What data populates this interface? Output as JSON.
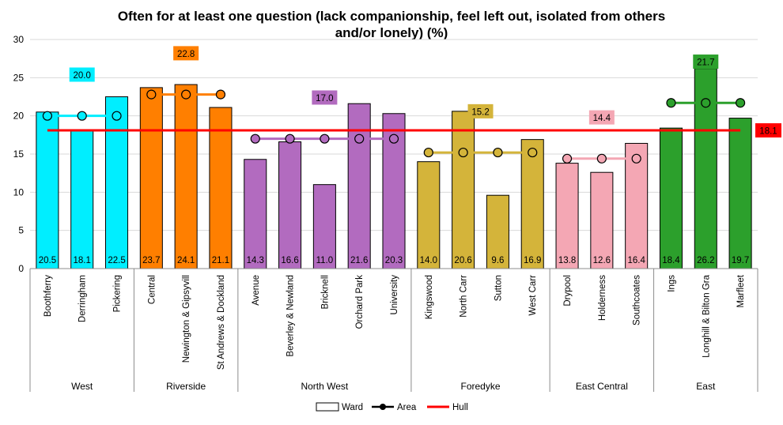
{
  "chart_data": {
    "type": "bar",
    "title_lines": [
      "Often for at least one question (lack companionship, feel left out, isolated from others",
      "and/or lonely) (%)"
    ],
    "ylim": [
      0,
      30
    ],
    "yticks": [
      0,
      5,
      10,
      15,
      20,
      25,
      30
    ],
    "grid": true,
    "legend": {
      "placement": "bottom",
      "items": [
        {
          "key": "ward",
          "label": "Ward"
        },
        {
          "key": "area",
          "label": "Area"
        },
        {
          "key": "hull",
          "label": "Hull"
        }
      ]
    },
    "hull": {
      "value": 18.1,
      "label": "18.1",
      "color": "#ff0000",
      "label_bg": "#ff0000"
    },
    "groups": [
      {
        "name": "West",
        "color": "#00eeff",
        "label_bg": "#00eeff",
        "area_value": 20.0,
        "area_label": "20.0",
        "wards": [
          {
            "name": "Boothferry",
            "value": 20.5,
            "label": "20.5"
          },
          {
            "name": "Derringham",
            "value": 18.1,
            "label": "18.1"
          },
          {
            "name": "Pickering",
            "value": 22.5,
            "label": "22.5"
          }
        ]
      },
      {
        "name": "Riverside",
        "color": "#ff7f00",
        "label_bg": "#ff7f00",
        "area_value": 22.8,
        "area_label": "22.8",
        "wards": [
          {
            "name": "Central",
            "value": 23.7,
            "label": "23.7"
          },
          {
            "name": "Newington & Gipsyvill",
            "value": 24.1,
            "label": "24.1"
          },
          {
            "name": "St Andrews & Dockland",
            "value": 21.1,
            "label": "21.1"
          }
        ]
      },
      {
        "name": "North West",
        "color": "#b26bbf",
        "label_bg": "#b26bbf",
        "area_value": 17.0,
        "area_label": "17.0",
        "wards": [
          {
            "name": "Avenue",
            "value": 14.3,
            "label": "14.3"
          },
          {
            "name": "Beverley & Newland",
            "value": 16.6,
            "label": "16.6"
          },
          {
            "name": "Bricknell",
            "value": 11.0,
            "label": "11.0"
          },
          {
            "name": "Orchard Park",
            "value": 21.6,
            "label": "21.6"
          },
          {
            "name": "University",
            "value": 20.3,
            "label": "20.3"
          }
        ]
      },
      {
        "name": "Foredyke",
        "color": "#d4b43a",
        "label_bg": "#d4b43a",
        "area_value": 15.2,
        "area_label": "15.2",
        "wards": [
          {
            "name": "Kingswood",
            "value": 14.0,
            "label": "14.0"
          },
          {
            "name": "North Carr",
            "value": 20.6,
            "label": "20.6"
          },
          {
            "name": "Sutton",
            "value": 9.6,
            "label": "9.6"
          },
          {
            "name": "West Carr",
            "value": 16.9,
            "label": "16.9"
          }
        ]
      },
      {
        "name": "East Central",
        "color": "#f4a7b4",
        "label_bg": "#f4a7b4",
        "area_value": 14.4,
        "area_label": "14.4",
        "wards": [
          {
            "name": "Drypool",
            "value": 13.8,
            "label": "13.8"
          },
          {
            "name": "Holderness",
            "value": 12.6,
            "label": "12.6"
          },
          {
            "name": "Southcoates",
            "value": 16.4,
            "label": "16.4"
          }
        ]
      },
      {
        "name": "East",
        "color": "#2ca02c",
        "label_bg": "#2ca02c",
        "area_value": 21.7,
        "area_label": "21.7",
        "wards": [
          {
            "name": "Ings",
            "value": 18.4,
            "label": "18.4"
          },
          {
            "name": "Longhill & Bilton Gra",
            "value": 26.2,
            "label": "26.2"
          },
          {
            "name": "Marfleet",
            "value": 19.7,
            "label": "19.7"
          }
        ]
      }
    ]
  }
}
